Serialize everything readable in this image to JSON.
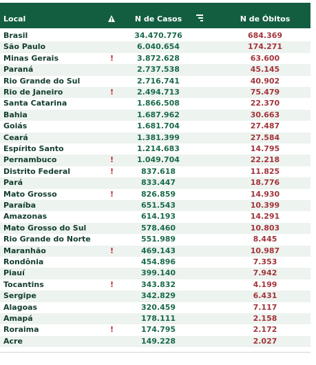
{
  "header": {
    "local": "Local",
    "cases": "N de Casos",
    "deaths": "N de Óbitos"
  },
  "table": {
    "rows": [
      {
        "name": "Brasil",
        "cases": "34.470.776",
        "deaths": "684.369"
      },
      {
        "name": "São Paulo",
        "cases": "6.040.654",
        "deaths": "174.271"
      },
      {
        "name": "Minas Gerais",
        "flag": "!",
        "cases": "3.872.628",
        "deaths": "63.600"
      },
      {
        "name": "Paraná",
        "cases": "2.737.538",
        "deaths": "45.145"
      },
      {
        "name": "Rio Grande do Sul",
        "cases": "2.716.741",
        "deaths": "40.902"
      },
      {
        "name": "Rio de Janeiro",
        "flag": "!",
        "cases": "2.494.713",
        "deaths": "75.479"
      },
      {
        "name": "Santa Catarina",
        "cases": "1.866.508",
        "deaths": "22.370"
      },
      {
        "name": "Bahia",
        "cases": "1.687.962",
        "deaths": "30.663"
      },
      {
        "name": "Goiás",
        "cases": "1.681.704",
        "deaths": "27.487"
      },
      {
        "name": "Ceará",
        "cases": "1.381.399",
        "deaths": "27.584"
      },
      {
        "name": "Espírito Santo",
        "cases": "1.214.683",
        "deaths": "14.795"
      },
      {
        "name": "Pernambuco",
        "flag": "!",
        "cases": "1.049.704",
        "deaths": "22.218"
      },
      {
        "name": "Distrito Federal",
        "flag": "!",
        "cases": "837.618",
        "deaths": "11.825"
      },
      {
        "name": "Pará",
        "cases": "833.447",
        "deaths": "18.776"
      },
      {
        "name": "Mato Grosso",
        "flag": "!",
        "cases": "826.859",
        "deaths": "14.930"
      },
      {
        "name": "Paraíba",
        "cases": "651.543",
        "deaths": "10.399"
      },
      {
        "name": "Amazonas",
        "cases": "614.193",
        "deaths": "14.291"
      },
      {
        "name": "Mato Grosso do Sul",
        "cases": "578.460",
        "deaths": "10.803"
      },
      {
        "name": "Rio Grande do Norte",
        "cases": "551.989",
        "deaths": "8.445"
      },
      {
        "name": "Maranhão",
        "flag": "!",
        "cases": "469.143",
        "deaths": "10.987"
      },
      {
        "name": "Rondônia",
        "cases": "454.896",
        "deaths": "7.353"
      },
      {
        "name": "Piauí",
        "cases": "399.140",
        "deaths": "7.942"
      },
      {
        "name": "Tocantins",
        "flag": "!",
        "cases": "343.832",
        "deaths": "4.199"
      },
      {
        "name": "Sergipe",
        "cases": "342.829",
        "deaths": "6.431"
      },
      {
        "name": "Alagoas",
        "cases": "320.459",
        "deaths": "7.117"
      },
      {
        "name": "Amapá",
        "cases": "178.111",
        "deaths": "2.158"
      },
      {
        "name": "Roraima",
        "flag": "!",
        "cases": "174.795",
        "deaths": "2.172"
      },
      {
        "name": "Acre",
        "cases": "149.228",
        "deaths": "2.027"
      }
    ]
  }
}
